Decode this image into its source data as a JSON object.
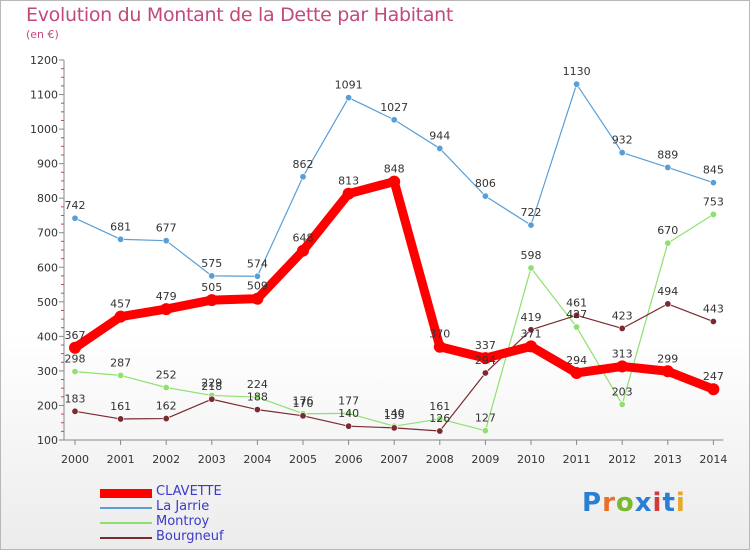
{
  "header": {
    "title": "Evolution du Montant de la Dette par Habitant",
    "subtitle": "(en €)"
  },
  "logo": {
    "text": "Proxiti",
    "colors": [
      "#2a7fd4",
      "#e8702a",
      "#7ab82e",
      "#2a7fd4",
      "#d43a3a",
      "#2a7fd4",
      "#e8a62a"
    ]
  },
  "chart_data": {
    "type": "line",
    "title": "Evolution du Montant de la Dette par Habitant",
    "subtitle": "(en €)",
    "xlabel": "",
    "ylabel": "",
    "ylim": [
      100,
      1200
    ],
    "yticks": [
      100,
      200,
      300,
      400,
      500,
      600,
      700,
      800,
      900,
      1000,
      1100,
      1200
    ],
    "categories": [
      "2000",
      "2001",
      "2002",
      "2003",
      "2004",
      "2005",
      "2006",
      "2007",
      "2008",
      "2009",
      "2010",
      "2011",
      "2012",
      "2013",
      "2014"
    ],
    "grid": false,
    "legend_position": "bottom-left",
    "series": [
      {
        "name": "CLAVETTE",
        "color": "#ff0000",
        "values": [
          367,
          457,
          479,
          505,
          509,
          648,
          813,
          848,
          370,
          337,
          371,
          294,
          313,
          299,
          247
        ]
      },
      {
        "name": "La Jarrie",
        "color": "#5a9ed6",
        "values": [
          742,
          681,
          677,
          575,
          574,
          862,
          1091,
          1027,
          944,
          806,
          722,
          1130,
          932,
          889,
          845
        ]
      },
      {
        "name": "Montroy",
        "color": "#90e070",
        "values": [
          298,
          287,
          252,
          229,
          224,
          176,
          177,
          140,
          161,
          127,
          598,
          427,
          203,
          670,
          753
        ]
      },
      {
        "name": "Bourgneuf",
        "color": "#7a2a30",
        "values": [
          183,
          161,
          162,
          218,
          188,
          170,
          140,
          135,
          126,
          294,
          419,
          461,
          423,
          494,
          443
        ]
      }
    ]
  }
}
